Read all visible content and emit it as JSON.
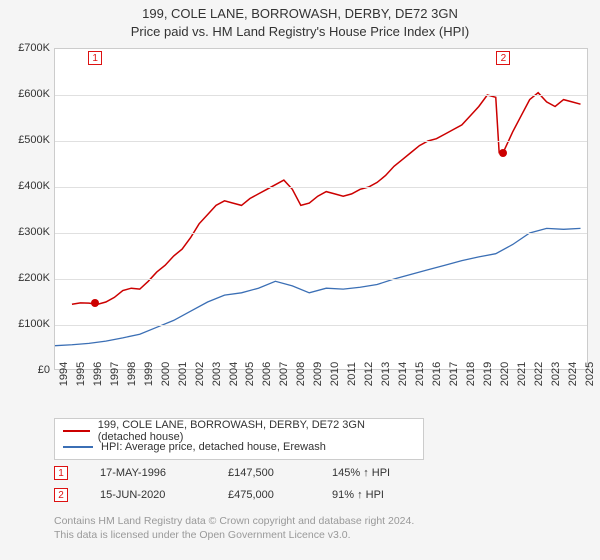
{
  "title": "199, COLE LANE, BORROWASH, DERBY, DE72 3GN",
  "subtitle": "Price paid vs. HM Land Registry's House Price Index (HPI)",
  "chart": {
    "type": "line",
    "background_color": "#ffffff",
    "grid_color": "#e0e0e0",
    "border_color": "#cccccc",
    "ylim": [
      0,
      700000
    ],
    "ytick_step": 100000,
    "yticks": [
      "£0",
      "£100K",
      "£200K",
      "£300K",
      "£400K",
      "£500K",
      "£600K",
      "£700K"
    ],
    "xticks": [
      "1994",
      "1995",
      "1996",
      "1997",
      "1998",
      "1999",
      "2000",
      "2001",
      "2002",
      "2003",
      "2004",
      "2005",
      "2006",
      "2007",
      "2008",
      "2009",
      "2010",
      "2011",
      "2012",
      "2013",
      "2014",
      "2015",
      "2016",
      "2017",
      "2018",
      "2019",
      "2020",
      "2021",
      "2022",
      "2023",
      "2024",
      "2025"
    ],
    "x_range": [
      1994,
      2025.5
    ],
    "series": [
      {
        "name": "property",
        "color": "#cc0000",
        "line_width": 1.5,
        "points": [
          [
            1995.0,
            145000
          ],
          [
            1995.5,
            148000
          ],
          [
            1996.0,
            147500
          ],
          [
            1996.5,
            145000
          ],
          [
            1997.0,
            150000
          ],
          [
            1997.5,
            160000
          ],
          [
            1998.0,
            175000
          ],
          [
            1998.5,
            180000
          ],
          [
            1999.0,
            178000
          ],
          [
            1999.5,
            195000
          ],
          [
            2000.0,
            215000
          ],
          [
            2000.5,
            230000
          ],
          [
            2001.0,
            250000
          ],
          [
            2001.5,
            265000
          ],
          [
            2002.0,
            290000
          ],
          [
            2002.5,
            320000
          ],
          [
            2003.0,
            340000
          ],
          [
            2003.5,
            360000
          ],
          [
            2004.0,
            370000
          ],
          [
            2004.5,
            365000
          ],
          [
            2005.0,
            360000
          ],
          [
            2005.5,
            375000
          ],
          [
            2006.0,
            385000
          ],
          [
            2006.5,
            395000
          ],
          [
            2007.0,
            405000
          ],
          [
            2007.5,
            415000
          ],
          [
            2008.0,
            395000
          ],
          [
            2008.5,
            360000
          ],
          [
            2009.0,
            365000
          ],
          [
            2009.5,
            380000
          ],
          [
            2010.0,
            390000
          ],
          [
            2010.5,
            385000
          ],
          [
            2011.0,
            380000
          ],
          [
            2011.5,
            385000
          ],
          [
            2012.0,
            395000
          ],
          [
            2012.5,
            400000
          ],
          [
            2013.0,
            410000
          ],
          [
            2013.5,
            425000
          ],
          [
            2014.0,
            445000
          ],
          [
            2014.5,
            460000
          ],
          [
            2015.0,
            475000
          ],
          [
            2015.5,
            490000
          ],
          [
            2016.0,
            500000
          ],
          [
            2016.5,
            505000
          ],
          [
            2017.0,
            515000
          ],
          [
            2017.5,
            525000
          ],
          [
            2018.0,
            535000
          ],
          [
            2018.5,
            555000
          ],
          [
            2019.0,
            575000
          ],
          [
            2019.5,
            600000
          ],
          [
            2020.0,
            595000
          ],
          [
            2020.2,
            475000
          ],
          [
            2020.5,
            480000
          ],
          [
            2021.0,
            520000
          ],
          [
            2021.5,
            555000
          ],
          [
            2022.0,
            590000
          ],
          [
            2022.5,
            605000
          ],
          [
            2023.0,
            585000
          ],
          [
            2023.5,
            575000
          ],
          [
            2024.0,
            590000
          ],
          [
            2024.5,
            585000
          ],
          [
            2025.0,
            580000
          ]
        ]
      },
      {
        "name": "hpi",
        "color": "#3b6fb5",
        "line_width": 1.3,
        "points": [
          [
            1994.0,
            55000
          ],
          [
            1995.0,
            57000
          ],
          [
            1996.0,
            60000
          ],
          [
            1997.0,
            65000
          ],
          [
            1998.0,
            72000
          ],
          [
            1999.0,
            80000
          ],
          [
            2000.0,
            95000
          ],
          [
            2001.0,
            110000
          ],
          [
            2002.0,
            130000
          ],
          [
            2003.0,
            150000
          ],
          [
            2004.0,
            165000
          ],
          [
            2005.0,
            170000
          ],
          [
            2006.0,
            180000
          ],
          [
            2007.0,
            195000
          ],
          [
            2008.0,
            185000
          ],
          [
            2009.0,
            170000
          ],
          [
            2010.0,
            180000
          ],
          [
            2011.0,
            178000
          ],
          [
            2012.0,
            182000
          ],
          [
            2013.0,
            188000
          ],
          [
            2014.0,
            200000
          ],
          [
            2015.0,
            210000
          ],
          [
            2016.0,
            220000
          ],
          [
            2017.0,
            230000
          ],
          [
            2018.0,
            240000
          ],
          [
            2019.0,
            248000
          ],
          [
            2020.0,
            255000
          ],
          [
            2021.0,
            275000
          ],
          [
            2022.0,
            300000
          ],
          [
            2023.0,
            310000
          ],
          [
            2024.0,
            308000
          ],
          [
            2025.0,
            310000
          ]
        ]
      }
    ],
    "markers": [
      {
        "n": "1",
        "x": 1996.37,
        "y_label": 700000,
        "dot_y": 147500,
        "dot_color": "#cc0000"
      },
      {
        "n": "2",
        "x": 2020.45,
        "y_label": 700000,
        "dot_y": 475000,
        "dot_color": "#cc0000"
      }
    ]
  },
  "legend": {
    "items": [
      {
        "color": "#cc0000",
        "label": "199, COLE LANE, BORROWASH, DERBY, DE72 3GN (detached house)"
      },
      {
        "color": "#3b6fb5",
        "label": "HPI: Average price, detached house, Erewash"
      }
    ]
  },
  "datapoints": [
    {
      "n": "1",
      "date": "17-MAY-1996",
      "price": "£147,500",
      "pct": "145% ↑ HPI"
    },
    {
      "n": "2",
      "date": "15-JUN-2020",
      "price": "£475,000",
      "pct": "91% ↑ HPI"
    }
  ],
  "footer": {
    "line1": "Contains HM Land Registry data © Crown copyright and database right 2024.",
    "line2": "This data is licensed under the Open Government Licence v3.0."
  }
}
